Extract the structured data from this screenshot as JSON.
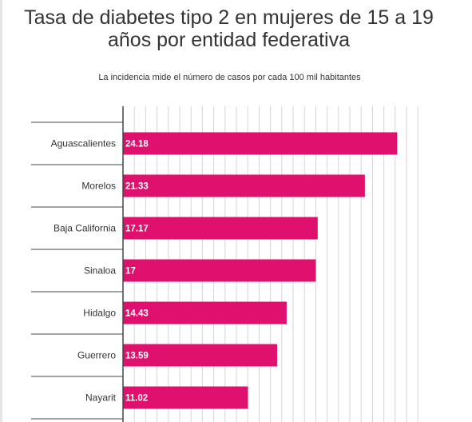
{
  "chart_data": {
    "type": "bar",
    "orientation": "horizontal",
    "title": "Tasa de diabetes tipo 2 en mujeres de 15 a 19 años por entidad federativa",
    "subtitle": "La incidencia mide el número de casos por cada 100 mil habitantes",
    "categories": [
      "Aguascalientes",
      "Morelos",
      "Baja California",
      "Sinaloa",
      "Hidalgo",
      "Guerrero",
      "Nayarit"
    ],
    "values": [
      24.18,
      21.33,
      17.17,
      17,
      14.43,
      13.59,
      11.02
    ],
    "value_labels": [
      "24.18",
      "21.33",
      "17.17",
      "17",
      "14.43",
      "13.59",
      "11.02"
    ],
    "xlim": [
      0,
      26
    ],
    "grid": true,
    "legend": "none",
    "colors": {
      "bar": "#e0116e",
      "grid": "#d4d4d4",
      "axis": "#444444",
      "category_text": "#333333",
      "value_text": "#ffffff"
    }
  }
}
